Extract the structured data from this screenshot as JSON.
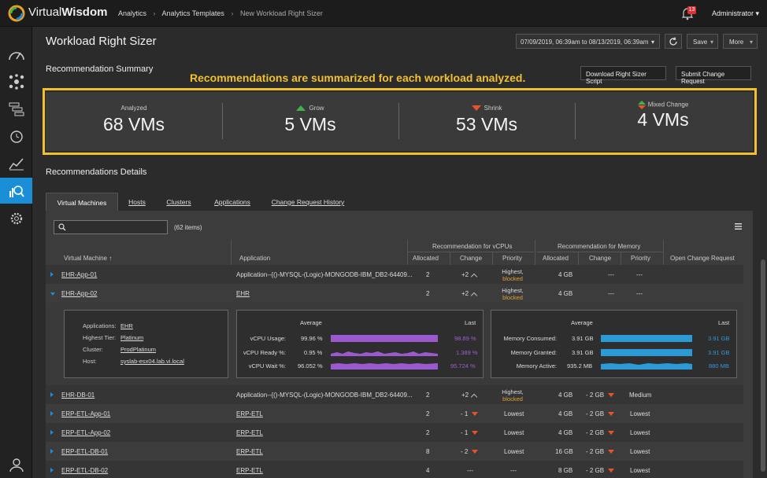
{
  "app": {
    "brand": "VirtualWisdom",
    "brand_part1": "Virtual",
    "brand_part2": "Wisdom"
  },
  "breadcrumb": [
    "Analytics",
    "Analytics Templates",
    "New Workload Right Sizer"
  ],
  "notifications": {
    "count": "13"
  },
  "user": {
    "name": "Administrator"
  },
  "sidebar": {
    "items": [
      "dashboard-icon",
      "topology-icon",
      "hierarchy-icon",
      "alarm-icon",
      "trend-icon",
      "analytics-icon",
      "settings-icon",
      "user-icon"
    ],
    "active": "analytics-icon"
  },
  "page": {
    "title": "Workload Right Sizer",
    "date_range": "07/09/2019, 06:39am to 08/13/2019, 06:39am",
    "save_label": "Save",
    "more_label": "More"
  },
  "summary": {
    "title": "Recommendation Summary",
    "callout": "Recommendations are summarized for each workload analyzed.",
    "download_label": "Download Right Sizer Script",
    "submit_label": "Submit Change Request",
    "stats": [
      {
        "label": "Analyzed",
        "value": "68 VMs"
      },
      {
        "label": "Grow",
        "value": "5 VMs"
      },
      {
        "label": "Shrink",
        "value": "53 VMs"
      },
      {
        "label": "Mixed Change",
        "value": "4 VMs"
      }
    ]
  },
  "details": {
    "title": "Recommendations Details",
    "tabs": [
      "Virtual Machines",
      "Hosts",
      "Clusters",
      "Applications",
      "Change Request History"
    ],
    "items_count": "(62 items)",
    "group_headers": {
      "vcpu": "Recommendation for vCPUs",
      "memory": "Recommendation for Memory"
    },
    "columns": [
      "Virtual Machine",
      "Application",
      "Allocated",
      "Change",
      "Priority",
      "Allocated",
      "Change",
      "Priority",
      "Open Change Request"
    ],
    "rows": [
      {
        "vm": "EHR-App-01",
        "app": "Application--{()-MYSQL-(Logic)-MONGODB-IBM_DB2-64409...",
        "cpu_alloc": "2",
        "cpu_change": "+2",
        "cpu_prio": "Highest,",
        "cpu_prio2": "blocked",
        "mem_alloc": "4 GB",
        "mem_change": "---",
        "mem_prio": "---"
      },
      {
        "vm": "EHR-App-02",
        "app": "EHR",
        "cpu_alloc": "2",
        "cpu_change": "+2",
        "cpu_prio": "Highest,",
        "cpu_prio2": "blocked",
        "mem_alloc": "4 GB",
        "mem_change": "---",
        "mem_prio": "---"
      },
      {
        "vm": "EHR-DB-01",
        "app": "Application--{()-MYSQL-(Logic)-MONGODB-IBM_DB2-64409...",
        "cpu_alloc": "2",
        "cpu_change": "+2",
        "cpu_prio": "Highest,",
        "cpu_prio2": "blocked",
        "mem_alloc": "4 GB",
        "mem_change": "- 2 GB",
        "mem_prio": "Medium"
      },
      {
        "vm": "ERP-ETL-App-01",
        "app": "ERP-ETL",
        "cpu_alloc": "2",
        "cpu_change": "- 1",
        "cpu_prio": "Lowest",
        "mem_alloc": "4 GB",
        "mem_change": "- 2 GB",
        "mem_prio": "Lowest"
      },
      {
        "vm": "ERP-ETL-App-02",
        "app": "ERP-ETL",
        "cpu_alloc": "2",
        "cpu_change": "- 1",
        "cpu_prio": "Lowest",
        "mem_alloc": "4 GB",
        "mem_change": "- 2 GB",
        "mem_prio": "Lowest"
      },
      {
        "vm": "ERP-ETL-DB-01",
        "app": "ERP-ETL",
        "cpu_alloc": "8",
        "cpu_change": "- 2",
        "cpu_prio": "Lowest",
        "mem_alloc": "16 GB",
        "mem_change": "- 2 GB",
        "mem_prio": "Lowest"
      },
      {
        "vm": "ERP-ETL-DB-02",
        "app": "ERP-ETL",
        "cpu_alloc": "4",
        "cpu_change": "---",
        "cpu_prio": "---",
        "mem_alloc": "8 GB",
        "mem_change": "- 2 GB",
        "mem_prio": "Lowest"
      }
    ],
    "expanded": {
      "info": [
        {
          "k": "Applications:",
          "v": "EHR"
        },
        {
          "k": "Highest Tier:",
          "v": "Platinum"
        },
        {
          "k": "Cluster:",
          "v": "ProdPlatinum"
        },
        {
          "k": "Host:",
          "v": "syslab-esx04.lab.vi.local"
        }
      ],
      "cpu_hdr": {
        "avg": "Average",
        "last": "Last"
      },
      "cpu": [
        {
          "label": "vCPU Usage:",
          "avg": "99.96 %",
          "last": "98.89 %"
        },
        {
          "label": "vCPU Ready %:",
          "avg": "0.95 %",
          "last": "1.389 %"
        },
        {
          "label": "vCPU Wait %:",
          "avg": "96.052 %",
          "last": "95.724 %"
        }
      ],
      "mem_hdr": {
        "avg": "Average",
        "last": "Last"
      },
      "mem": [
        {
          "label": "Memory Consumed:",
          "avg": "3.91 GB",
          "last": "3.91 GB"
        },
        {
          "label": "Memory Granted:",
          "avg": "3.91 GB",
          "last": "3.91 GB"
        },
        {
          "label": "Memory Active:",
          "avg": "935.2 MB",
          "last": "880 MB"
        }
      ]
    }
  },
  "colors": {
    "accent": "#1a8fd8",
    "highlight": "#f0c030",
    "grow": "#3db54a",
    "shrink": "#e8542a",
    "cpu_spark": "#9b59d0",
    "mem_spark": "#2d9ad8"
  }
}
